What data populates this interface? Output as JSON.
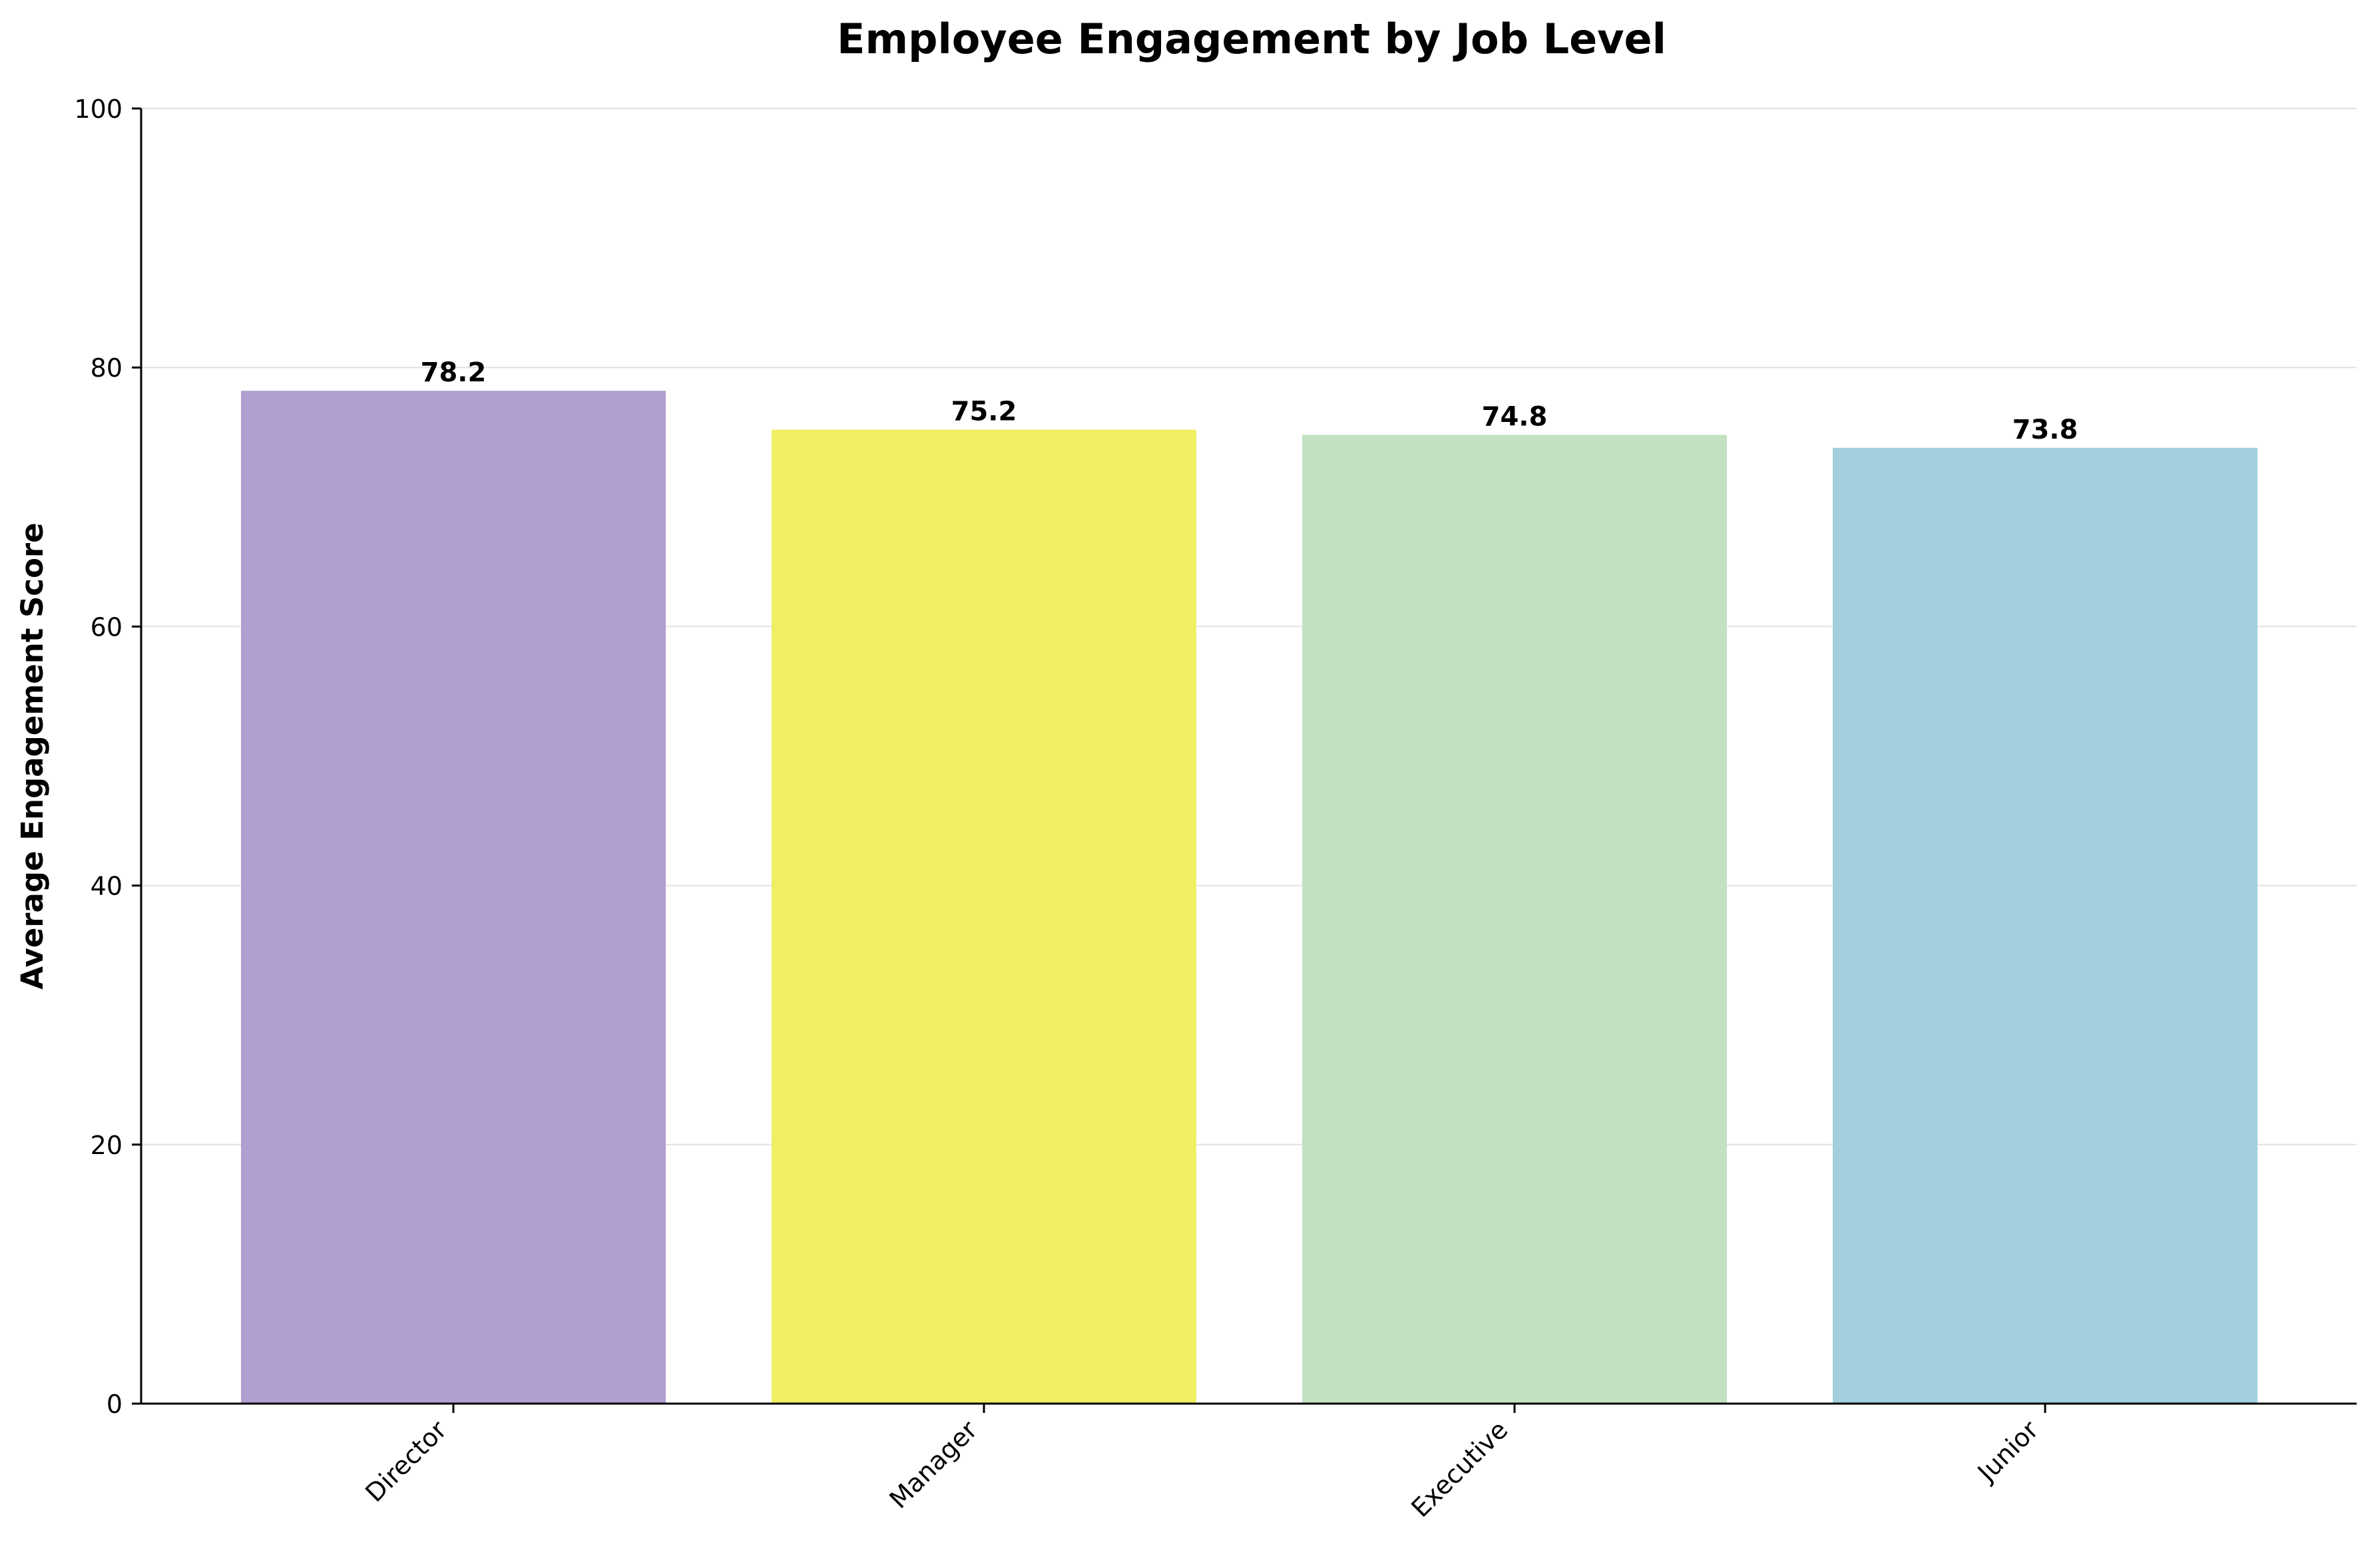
{
  "chart_data": {
    "type": "bar",
    "title": "Employee Engagement by Job Level",
    "xlabel": "",
    "ylabel": "Average Engagement Score",
    "categories": [
      "Director",
      "Manager",
      "Executive",
      "Junior"
    ],
    "values": [
      78.2,
      75.2,
      74.8,
      73.8
    ],
    "value_labels": [
      "78.2",
      "75.2",
      "74.8",
      "73.8"
    ],
    "ylim": [
      0,
      100
    ],
    "yticks": [
      0,
      20,
      40,
      60,
      80,
      100
    ],
    "ytick_labels": [
      "0",
      "20",
      "40",
      "60",
      "80",
      "100"
    ],
    "grid": "horizontal",
    "legend": "none",
    "colors": [
      "#b09fcf",
      "#f0ee62",
      "#c3e1c2",
      "#a1cfde"
    ]
  }
}
